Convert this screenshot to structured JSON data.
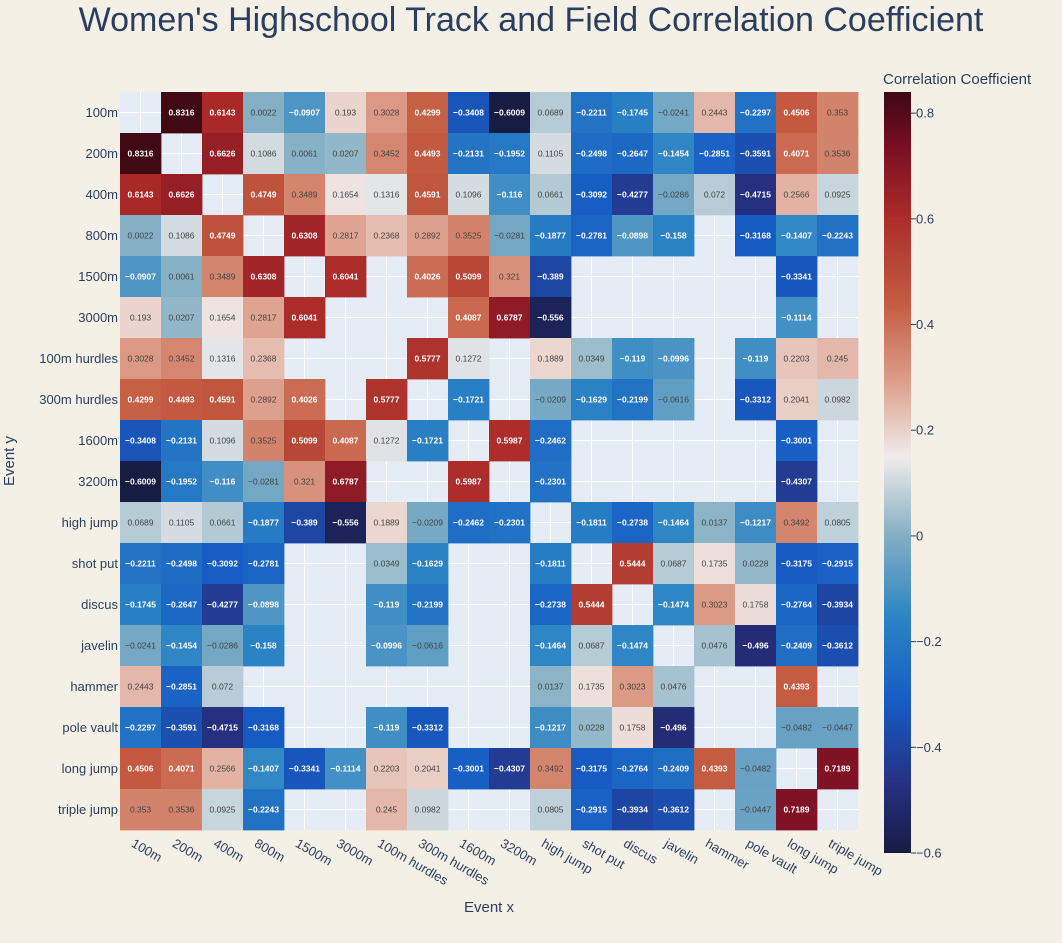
{
  "chart_data": {
    "type": "heatmap",
    "title": "Women's Highschool Track and Field Correlation Coefficient",
    "xlabel": "Event x",
    "ylabel": "Event y",
    "colorbar": {
      "title": "Correlation Coefficient",
      "min": -0.6,
      "max": 0.84,
      "ticks": [
        -0.6,
        -0.4,
        -0.2,
        0,
        0.2,
        0.4,
        0.6,
        0.8
      ],
      "tick_labels": [
        "−0.6",
        "−0.4",
        "−0.2",
        "0",
        "0.2",
        "0.4",
        "0.6",
        "0.8"
      ]
    },
    "categories": [
      "100m",
      "200m",
      "400m",
      "800m",
      "1500m",
      "3000m",
      "100m hurdles",
      "300m hurdles",
      "1600m",
      "3200m",
      "high jump",
      "shot put",
      "discus",
      "javelin",
      "hammer",
      "pole vault",
      "long jump",
      "triple jump"
    ],
    "values": [
      [
        null,
        0.8316,
        0.6143,
        0.0022,
        -0.0907,
        0.193,
        0.3028,
        0.4299,
        -0.3408,
        -0.6009,
        0.0689,
        -0.2211,
        -0.1745,
        -0.0241,
        0.2443,
        -0.2297,
        0.4506,
        0.353
      ],
      [
        0.8316,
        null,
        0.6626,
        0.1086,
        0.0061,
        0.0207,
        0.3452,
        0.4493,
        -0.2131,
        -0.1952,
        0.1105,
        -0.2498,
        -0.2647,
        -0.1454,
        -0.2851,
        -0.3591,
        0.4071,
        0.3536
      ],
      [
        0.6143,
        0.6626,
        null,
        0.4749,
        0.3489,
        0.1654,
        0.1316,
        0.4591,
        0.1096,
        -0.116,
        0.0661,
        -0.3092,
        -0.4277,
        -0.0286,
        0.072,
        -0.4715,
        0.2566,
        0.0925
      ],
      [
        0.0022,
        0.1086,
        0.4749,
        null,
        0.6308,
        0.2817,
        0.2368,
        0.2892,
        0.3525,
        -0.0281,
        -0.1877,
        -0.2781,
        -0.0898,
        -0.158,
        null,
        -0.3168,
        -0.1407,
        -0.2243
      ],
      [
        -0.0907,
        0.0061,
        0.3489,
        0.6308,
        null,
        0.6041,
        null,
        0.4026,
        0.5099,
        0.321,
        -0.389,
        null,
        null,
        null,
        null,
        null,
        -0.3341,
        null
      ],
      [
        0.193,
        0.0207,
        0.1654,
        0.2817,
        0.6041,
        null,
        null,
        null,
        0.4087,
        0.6787,
        -0.556,
        null,
        null,
        null,
        null,
        null,
        -0.1114,
        null
      ],
      [
        0.3028,
        0.3452,
        0.1316,
        0.2368,
        null,
        null,
        null,
        0.5777,
        0.1272,
        null,
        0.1889,
        0.0349,
        -0.119,
        -0.0996,
        null,
        -0.119,
        0.2203,
        0.245
      ],
      [
        0.4299,
        0.4493,
        0.4591,
        0.2892,
        0.4026,
        null,
        0.5777,
        null,
        -0.1721,
        null,
        -0.0209,
        -0.1629,
        -0.2199,
        -0.0616,
        null,
        -0.3312,
        0.2041,
        0.0982
      ],
      [
        -0.3408,
        -0.2131,
        0.1096,
        0.3525,
        0.5099,
        0.4087,
        0.1272,
        -0.1721,
        null,
        0.5987,
        -0.2462,
        null,
        null,
        null,
        null,
        null,
        -0.3001,
        null
      ],
      [
        -0.6009,
        -0.1952,
        -0.116,
        -0.0281,
        0.321,
        0.6787,
        null,
        null,
        0.5987,
        null,
        -0.2301,
        null,
        null,
        null,
        null,
        null,
        -0.4307,
        null
      ],
      [
        0.0689,
        0.1105,
        0.0661,
        -0.1877,
        -0.389,
        -0.556,
        0.1889,
        -0.0209,
        -0.2462,
        -0.2301,
        null,
        -0.1811,
        -0.2738,
        -0.1464,
        0.0137,
        -0.1217,
        0.3492,
        0.0805
      ],
      [
        -0.2211,
        -0.2498,
        -0.3092,
        -0.2781,
        null,
        null,
        0.0349,
        -0.1629,
        null,
        null,
        -0.1811,
        null,
        0.5444,
        0.0687,
        0.1735,
        0.0228,
        -0.3175,
        -0.2915
      ],
      [
        -0.1745,
        -0.2647,
        -0.4277,
        -0.0898,
        null,
        null,
        -0.119,
        -0.2199,
        null,
        null,
        -0.2738,
        0.5444,
        null,
        -0.1474,
        0.3023,
        0.1758,
        -0.2764,
        -0.3934
      ],
      [
        -0.0241,
        -0.1454,
        -0.0286,
        -0.158,
        null,
        null,
        -0.0996,
        -0.0616,
        null,
        null,
        -0.1464,
        0.0687,
        -0.1474,
        null,
        0.0476,
        -0.496,
        -0.2409,
        -0.3612
      ],
      [
        0.2443,
        -0.2851,
        0.072,
        null,
        null,
        null,
        null,
        null,
        null,
        null,
        0.0137,
        0.1735,
        0.3023,
        0.0476,
        null,
        null,
        0.4393,
        null
      ],
      [
        -0.2297,
        -0.3591,
        -0.4715,
        -0.3168,
        null,
        null,
        -0.119,
        -0.3312,
        null,
        null,
        -0.1217,
        0.0228,
        0.1758,
        -0.496,
        null,
        null,
        -0.0482,
        -0.0447
      ],
      [
        0.4506,
        0.4071,
        0.2566,
        -0.1407,
        -0.3341,
        -0.1114,
        0.2203,
        0.2041,
        -0.3001,
        -0.4307,
        0.3492,
        -0.3175,
        -0.2764,
        -0.2409,
        0.4393,
        -0.0482,
        null,
        0.7189
      ],
      [
        0.353,
        0.3536,
        0.0925,
        -0.2243,
        null,
        null,
        0.245,
        0.0982,
        null,
        null,
        0.0805,
        -0.2915,
        -0.3934,
        -0.3612,
        null,
        -0.0447,
        0.7189,
        null
      ]
    ]
  },
  "colors": {
    "background": "#f5f0e6",
    "plot_background": "#e5ecf6",
    "text": "#2a3f5f"
  }
}
